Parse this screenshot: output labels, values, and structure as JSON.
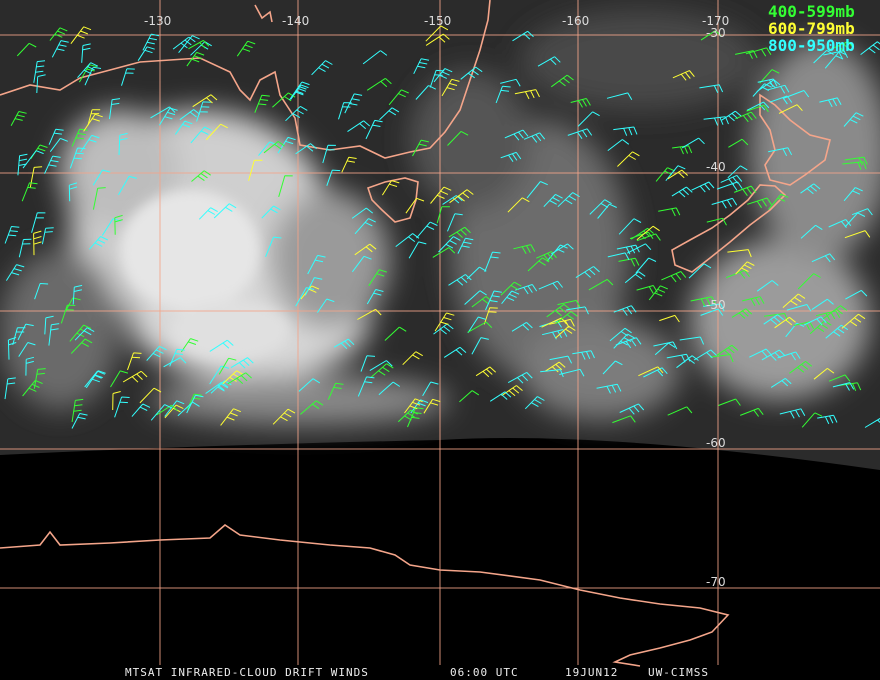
{
  "map": {
    "lon_labels": [
      "-130",
      "-140",
      "-150",
      "-160",
      "-170"
    ],
    "lat_labels": [
      "-30",
      "-40",
      "-50",
      "-60",
      "-70"
    ],
    "legend": [
      {
        "label": "400-599mb",
        "color": "#33ff33"
      },
      {
        "label": "600-799mb",
        "color": "#ffff33"
      },
      {
        "label": "800-950mb",
        "color": "#33ffff"
      }
    ],
    "footer": [
      "MTSAT INFRARED-CLOUD DRIFT WINDS",
      "06:00 UTC",
      "19JUN12",
      "UW-CIMSS"
    ]
  }
}
